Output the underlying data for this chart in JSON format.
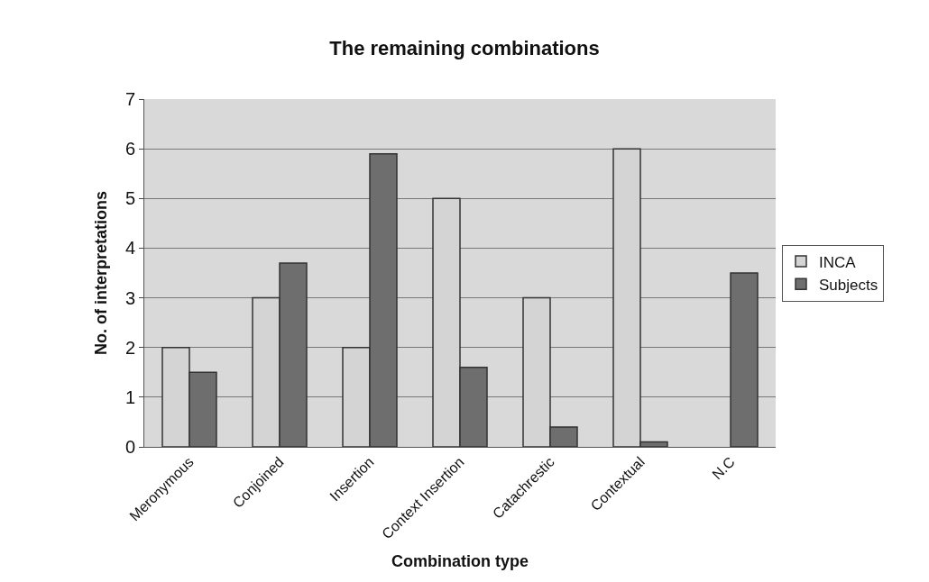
{
  "chart_data": {
    "type": "bar",
    "title": "The remaining combinations",
    "xlabel": "Combination type",
    "ylabel": "No. of interpretations",
    "categories": [
      "Meronymous",
      "Conjoined",
      "Insertion",
      "Context Insertion",
      "Catachrestic",
      "Contextual",
      "N.C"
    ],
    "series": [
      {
        "name": "INCA",
        "color": "#d4d4d4",
        "values": [
          2,
          3,
          2,
          5,
          3,
          6,
          0
        ]
      },
      {
        "name": "Subjects",
        "color": "#6e6e6e",
        "values": [
          1.5,
          3.7,
          5.9,
          1.6,
          0.4,
          0.1,
          3.5
        ]
      }
    ],
    "ylim": [
      0,
      7
    ],
    "yticks": [
      0,
      1,
      2,
      3,
      4,
      5,
      6,
      7
    ],
    "grid": "y",
    "legend": "right"
  }
}
